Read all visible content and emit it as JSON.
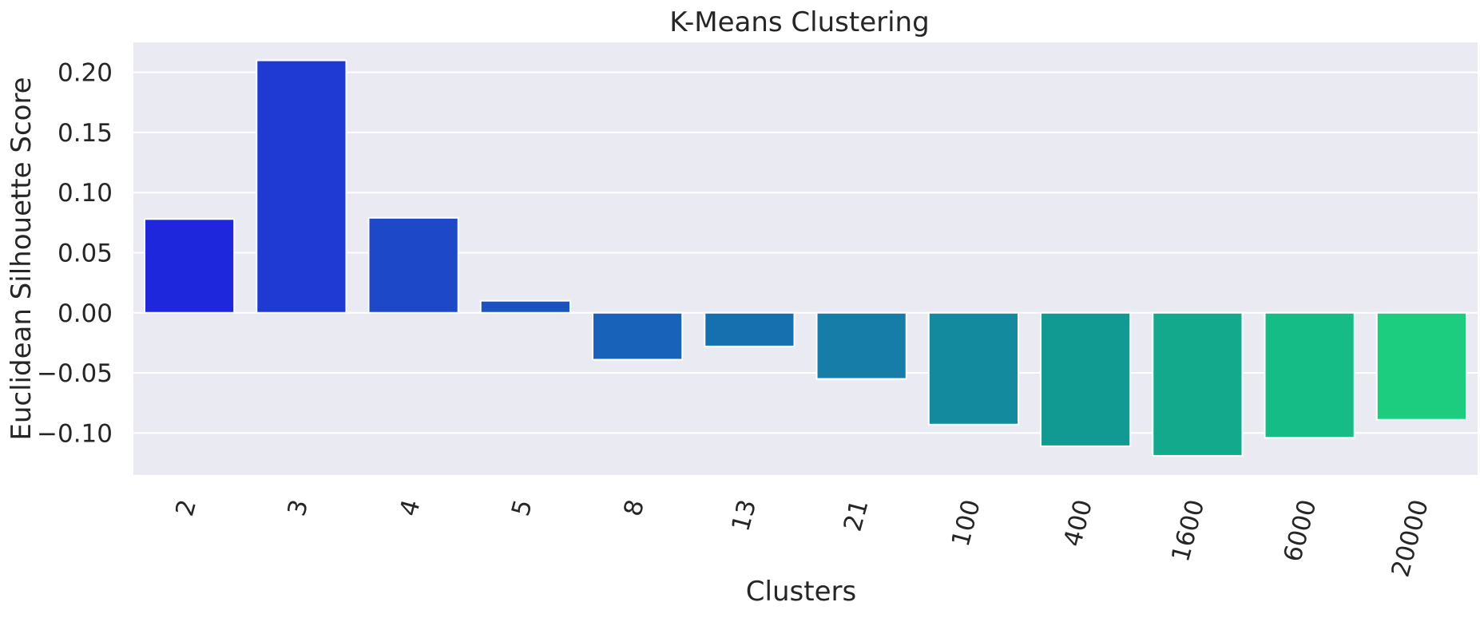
{
  "chart_data": {
    "type": "bar",
    "title": "K-Means Clustering",
    "xlabel": "Clusters",
    "ylabel": "Euclidean Silhouette Score",
    "categories": [
      "2",
      "3",
      "4",
      "5",
      "8",
      "13",
      "21",
      "100",
      "400",
      "1600",
      "6000",
      "20000"
    ],
    "values": [
      0.078,
      0.21,
      0.079,
      0.01,
      -0.039,
      -0.028,
      -0.055,
      -0.093,
      -0.111,
      -0.119,
      -0.104,
      -0.089
    ],
    "colors": [
      "#1f27dc",
      "#1e3ad3",
      "#1d48c8",
      "#1a53be",
      "#1962b9",
      "#1670b0",
      "#157da7",
      "#138a9d",
      "#119a92",
      "#12a98c",
      "#16bc85",
      "#1ccd80"
    ],
    "yticks": [
      0.2,
      0.15,
      0.1,
      0.05,
      0.0,
      -0.05,
      -0.1
    ],
    "ytick_labels": [
      "0.20",
      "0.15",
      "0.10",
      "0.05",
      "0.00",
      "−0.05",
      "−0.10"
    ],
    "ylim": [
      -0.135,
      0.225
    ],
    "grid": true,
    "xtick_rotation": 75
  }
}
